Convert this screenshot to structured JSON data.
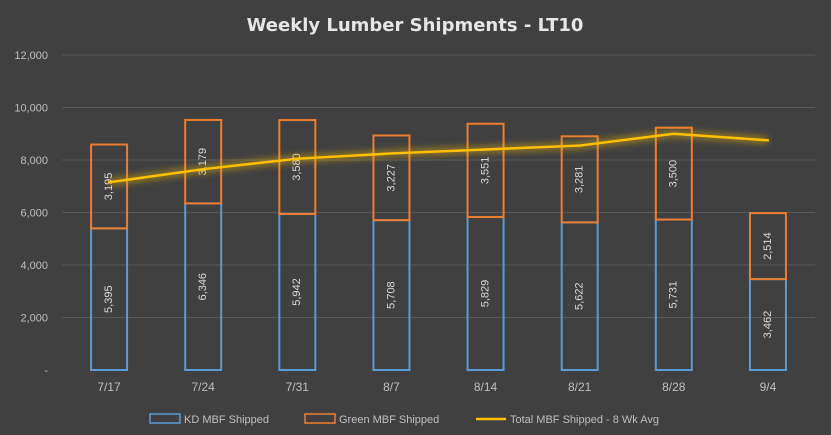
{
  "chart_data": {
    "type": "bar",
    "title": "Weekly Lumber Shipments - LT10",
    "categories": [
      "7/17",
      "7/24",
      "7/31",
      "8/7",
      "8/14",
      "8/21",
      "8/28",
      "9/4"
    ],
    "series": [
      {
        "name": "KD MBF Shipped",
        "kind": "stacked-bar",
        "color": "#5B9BD5",
        "values": [
          5395,
          6346,
          5942,
          5708,
          5829,
          5622,
          5731,
          3462
        ],
        "labels": [
          "5,395",
          "6,346",
          "5,942",
          "5,708",
          "5,829",
          "5,622",
          "5,731",
          "3,462"
        ]
      },
      {
        "name": "Green MBF Shipped",
        "kind": "stacked-bar",
        "color": "#ED7D31",
        "values": [
          3195,
          3179,
          3580,
          3227,
          3551,
          3281,
          3500,
          2514
        ],
        "labels": [
          "3,195",
          "3,179",
          "3,580",
          "3,227",
          "3,551",
          "3,281",
          "3,500",
          "2,514"
        ]
      },
      {
        "name": "Total MBF Shipped - 8 Wk Avg",
        "kind": "line",
        "color": "#FFC000",
        "values": [
          7150,
          7650,
          8050,
          8250,
          8400,
          8550,
          9000,
          8750
        ]
      }
    ],
    "ylim": [
      0,
      12000
    ],
    "yticks": [
      0,
      2000,
      4000,
      6000,
      8000,
      10000,
      12000
    ],
    "ytick_labels": [
      "-",
      "2,000",
      "4,000",
      "6,000",
      "8,000",
      "10,000",
      "12,000"
    ],
    "grid": true,
    "legend_position": "bottom",
    "xlabel": "",
    "ylabel": ""
  }
}
